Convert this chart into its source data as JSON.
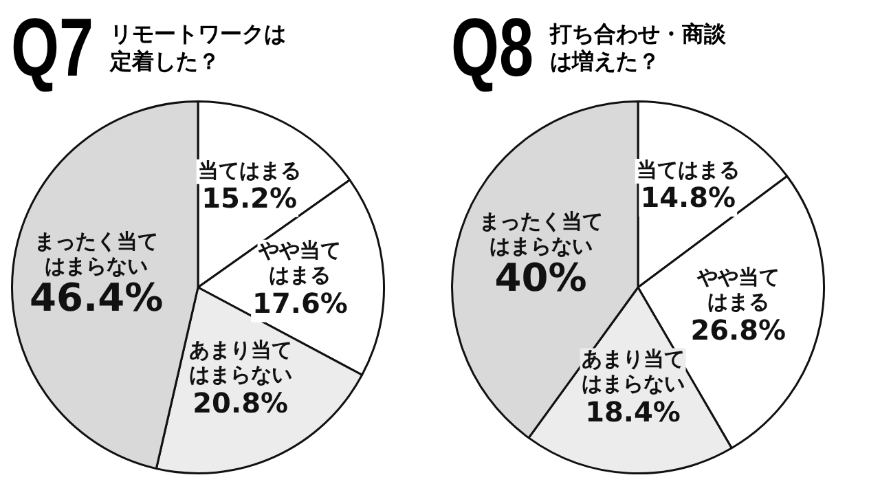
{
  "chart_data": [
    {
      "type": "pie",
      "title": "Q7",
      "subtitle": "リモートワークは定着した？",
      "categories": [
        "当てはまる",
        "やや当てはまる",
        "あまり当てはまらない",
        "まったく当てはまらない"
      ],
      "values": [
        15.2,
        17.6,
        20.8,
        46.4
      ],
      "value_labels": [
        "15.2%",
        "17.6%",
        "20.8%",
        "46.4%"
      ],
      "colors": [
        "#ffffff",
        "#ffffff",
        "#ececec",
        "#d9d9d9"
      ]
    },
    {
      "type": "pie",
      "title": "Q8",
      "subtitle": "打ち合わせ・商談は増えた？",
      "categories": [
        "当てはまる",
        "やや当てはまる",
        "あまり当てはまらない",
        "まったく当てはまらない"
      ],
      "values": [
        14.8,
        26.8,
        18.4,
        40
      ],
      "value_labels": [
        "14.8%",
        "26.8%",
        "18.4%",
        "40%"
      ],
      "colors": [
        "#ffffff",
        "#ffffff",
        "#ececec",
        "#d9d9d9"
      ]
    }
  ]
}
